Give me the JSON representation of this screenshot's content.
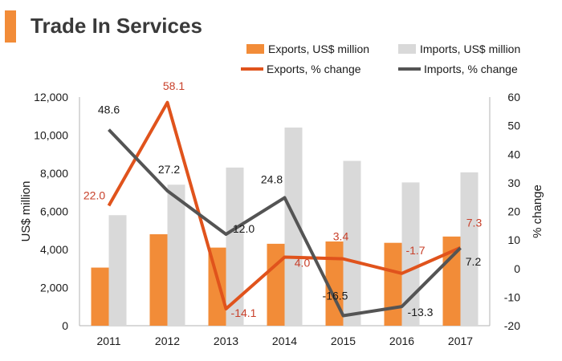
{
  "header": {
    "title": "Trade In Services"
  },
  "chart_data": {
    "type": "bar",
    "title": "Trade In Services",
    "categories": [
      "2011",
      "2012",
      "2013",
      "2014",
      "2015",
      "2016",
      "2017"
    ],
    "ylabel": "US$ million",
    "y2label": "% change",
    "ylim": [
      0,
      12000
    ],
    "y2lim": [
      -20,
      60
    ],
    "yticks": [
      "0",
      "2,000",
      "4,000",
      "6,000",
      "8,000",
      "10,000",
      "12,000"
    ],
    "y2ticks": [
      "-20",
      "-10",
      "0",
      "10",
      "20",
      "30",
      "40",
      "50",
      "60"
    ],
    "series": [
      {
        "name": "Exports, US$ million",
        "type": "bar",
        "axis": "left",
        "color": "#f28c38",
        "values": [
          3050,
          4800,
          4100,
          4300,
          4420,
          4350,
          4680
        ]
      },
      {
        "name": "Imports, US$ million",
        "type": "bar",
        "axis": "left",
        "color": "#d9d9d9",
        "values": [
          5800,
          7400,
          8300,
          10400,
          8650,
          7520,
          8050
        ]
      },
      {
        "name": "Exports, % change",
        "type": "line",
        "axis": "right",
        "color": "#e0531c",
        "values": [
          22.0,
          58.1,
          -14.1,
          4.0,
          3.4,
          -1.7,
          7.3
        ],
        "labels": [
          "22.0",
          "58.1",
          "-14.1",
          "4.0",
          "3.4",
          "-1.7",
          "7.3"
        ],
        "label_color": "#c8402a"
      },
      {
        "name": "Imports, % change",
        "type": "line",
        "axis": "right",
        "color": "#545454",
        "values": [
          48.6,
          27.2,
          12.0,
          24.8,
          -16.5,
          -13.3,
          7.2
        ],
        "labels": [
          "48.6",
          "27.2",
          "12.0",
          "24.8",
          "-16.5",
          "-13.3",
          "7.2"
        ],
        "label_color": "#1a1a1a"
      }
    ],
    "legend": [
      "Exports, US$ million",
      "Imports, US$ million",
      "Exports, % change",
      "Imports, % change"
    ]
  }
}
